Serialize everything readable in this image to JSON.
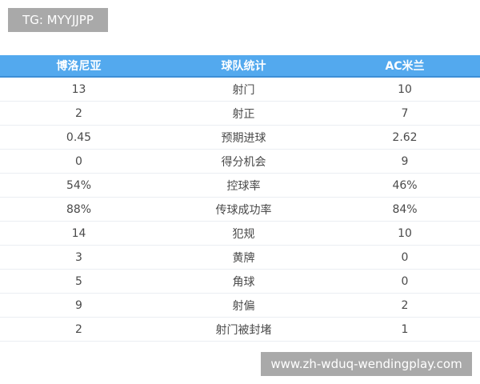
{
  "watermark_top": "TG: MYYJJPP",
  "watermark_bottom": "www.zh-wduq-wendingplay.com",
  "header": {
    "home": "博洛尼亚",
    "stat": "球队统计",
    "away": "AC米兰"
  },
  "rows": [
    {
      "home": "13",
      "stat": "射门",
      "away": "10"
    },
    {
      "home": "2",
      "stat": "射正",
      "away": "7"
    },
    {
      "home": "0.45",
      "stat": "预期进球",
      "away": "2.62"
    },
    {
      "home": "0",
      "stat": "得分机会",
      "away": "9"
    },
    {
      "home": "54%",
      "stat": "控球率",
      "away": "46%"
    },
    {
      "home": "88%",
      "stat": "传球成功率",
      "away": "84%"
    },
    {
      "home": "14",
      "stat": "犯规",
      "away": "10"
    },
    {
      "home": "3",
      "stat": "黄牌",
      "away": "0"
    },
    {
      "home": "5",
      "stat": "角球",
      "away": "0"
    },
    {
      "home": "9",
      "stat": "射偏",
      "away": "2"
    },
    {
      "home": "2",
      "stat": "射门被封堵",
      "away": "1"
    }
  ],
  "colors": {
    "header_bg": "#53a9ee",
    "badge_bg": "#a9a9a9"
  }
}
